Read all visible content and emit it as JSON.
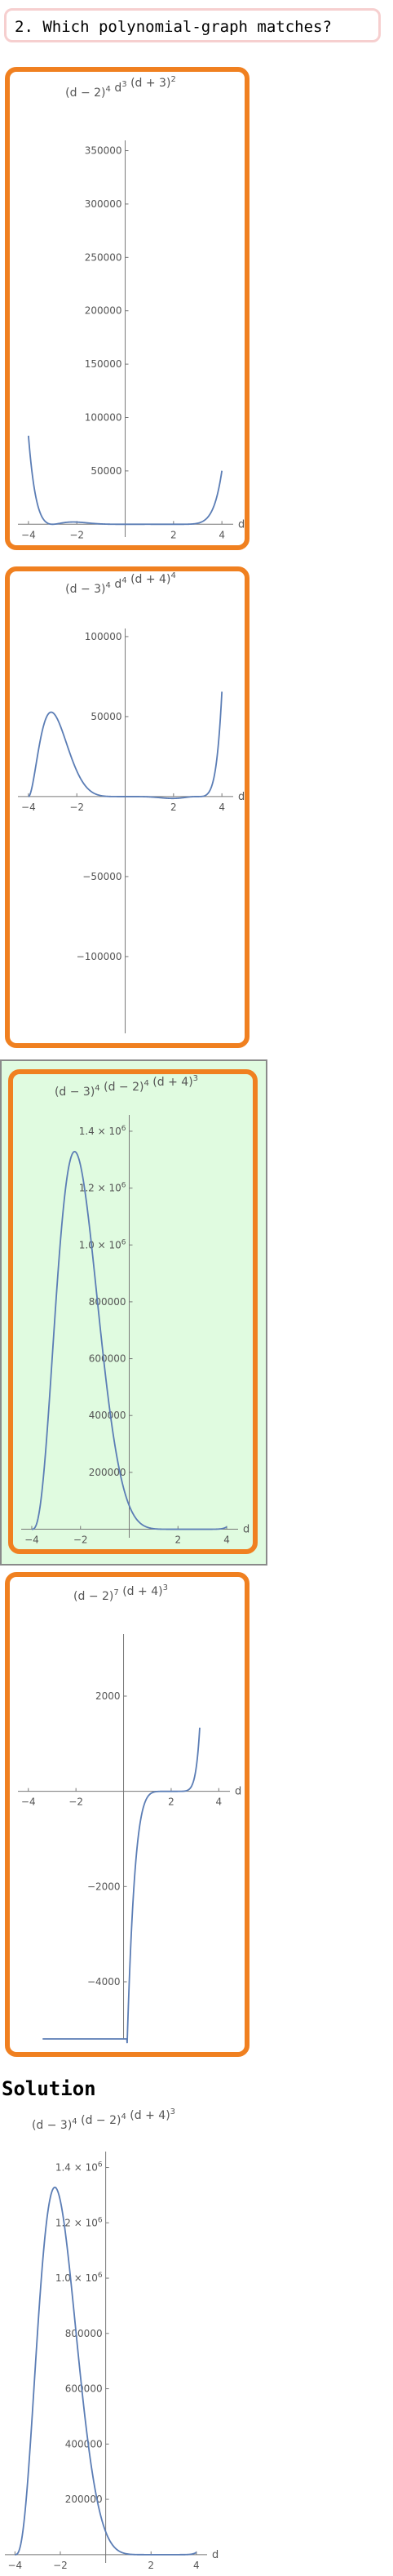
{
  "question": {
    "title": "2. Which polynomial-graph matches?"
  },
  "colors": {
    "card_border": "#f08020",
    "curve": "#5b7db5",
    "selected_bg": "#e0fbe0",
    "axis": "#777777"
  },
  "choices": [
    {
      "selected": false,
      "chart_data": {
        "type": "line",
        "title": "(d − 2)⁴ d³ (d + 3)²",
        "title_parts": [
          [
            "(d − 2)",
            ""
          ],
          [
            "4",
            "sup"
          ],
          [
            " d",
            ""
          ],
          [
            "3",
            "sup"
          ],
          [
            " (d + 3)",
            ""
          ],
          [
            "2",
            "sup"
          ]
        ],
        "xlabel": "d",
        "xlim": [
          -4.3,
          4.4
        ],
        "ylim": [
          -12000,
          355000
        ],
        "x_ticks": [
          -4,
          -2,
          2,
          4
        ],
        "x_tick_labels": [
          "−4",
          "−2",
          "2",
          "4"
        ],
        "y_ticks": [
          50000,
          100000,
          150000,
          200000,
          250000,
          300000,
          350000
        ],
        "y_tick_labels": [
          "50000",
          "100000",
          "150000",
          "200000",
          "250000",
          "300000",
          "350000"
        ],
        "plot_range": [
          -4,
          4
        ],
        "poly": {
          "factors": [
            [
              0,
              3
            ],
            [
              2,
              4
            ],
            [
              -3,
              2
            ]
          ],
          "coef": -1,
          "abs": true
        }
      }
    },
    {
      "selected": false,
      "chart_data": {
        "type": "line",
        "title": "(d − 3)⁴ d⁴ (d + 4)⁴",
        "title_parts": [
          [
            "(d − 3)",
            ""
          ],
          [
            "4",
            "sup"
          ],
          [
            " d",
            ""
          ],
          [
            "4",
            "sup"
          ],
          [
            " (d + 4)",
            ""
          ],
          [
            "4",
            "sup"
          ]
        ],
        "xlabel": "d",
        "xlim": [
          -4.3,
          4.4
        ],
        "ylim": [
          -148000,
          102000
        ],
        "x_ticks": [
          -4,
          -2,
          2,
          4
        ],
        "x_tick_labels": [
          "−4",
          "−2",
          "2",
          "4"
        ],
        "y_ticks": [
          -100000,
          -50000,
          50000,
          100000
        ],
        "y_tick_labels": [
          "−100000",
          "−50000",
          "50000",
          "100000"
        ],
        "plot_range": [
          -4,
          4
        ],
        "poly": {
          "factors": [
            [
              3,
              3
            ],
            [
              0,
              5
            ],
            [
              -4,
              2
            ]
          ],
          "coef": 1,
          "abs": false
        }
      }
    },
    {
      "selected": true,
      "chart_data": {
        "type": "line",
        "title": "(d − 3)⁴ (d − 2)⁴ (d + 4)³",
        "title_parts": [
          [
            "(d − 3)",
            ""
          ],
          [
            "4",
            "sup"
          ],
          [
            " (d − 2)",
            ""
          ],
          [
            "4",
            "sup"
          ],
          [
            " (d + 4)",
            ""
          ],
          [
            "3",
            "sup"
          ]
        ],
        "xlabel": "d",
        "xlim": [
          -4.3,
          4.4
        ],
        "ylim": [
          -30000,
          1440000
        ],
        "x_ticks": [
          -4,
          -2,
          2,
          4
        ],
        "x_tick_labels": [
          "−4",
          "−2",
          "2",
          "4"
        ],
        "y_ticks": [
          200000,
          400000,
          600000,
          800000,
          1000000,
          1200000,
          1400000
        ],
        "y_tick_labels": [
          "200000",
          "400000",
          "600000",
          "800000",
          "1.0 × 10^6",
          "1.2 × 10^6",
          "1.4 × 10^6"
        ],
        "plot_range": [
          -4,
          4
        ],
        "poly": {
          "factors": [
            [
              3,
              4
            ],
            [
              2,
              4
            ],
            [
              -4,
              3
            ]
          ],
          "coef": 1,
          "abs": false
        }
      }
    },
    {
      "selected": false,
      "chart_data": {
        "type": "line",
        "title": "(d − 2)⁷ (d + 4)³",
        "title_parts": [
          [
            "(d − 2)",
            ""
          ],
          [
            "7",
            "sup"
          ],
          [
            " (d + 4)",
            ""
          ],
          [
            "3",
            "sup"
          ]
        ],
        "xlabel": "d",
        "xlim": [
          -4.3,
          4.4
        ],
        "ylim": [
          -5200,
          3200
        ],
        "x_ticks": [
          -4,
          -2,
          2,
          4
        ],
        "x_tick_labels": [
          "−4",
          "−2",
          "2",
          "4"
        ],
        "y_ticks": [
          -4000,
          -2000,
          2000
        ],
        "y_tick_labels": [
          "−4000",
          "−2000",
          "2000"
        ],
        "plot_range": [
          -3.4,
          3.2
        ],
        "poly": {
          "factors": [
            [
              2,
              7
            ],
            [
              -4,
              3
            ]
          ],
          "coef": 1,
          "abs": false
        }
      }
    }
  ],
  "solution": {
    "heading": "Solution",
    "chart_data": {
      "type": "line",
      "title": "(d − 3)⁴ (d − 2)⁴ (d + 4)³",
      "title_parts": [
        [
          "(d − 3)",
          ""
        ],
        [
          "4",
          "sup"
        ],
        [
          " (d − 2)",
          ""
        ],
        [
          "4",
          "sup"
        ],
        [
          " (d + 4)",
          ""
        ],
        [
          "3",
          "sup"
        ]
      ],
      "xlabel": "d",
      "xlim": [
        -4.3,
        4.4
      ],
      "ylim": [
        -30000,
        1440000
      ],
      "x_ticks": [
        -4,
        -2,
        2,
        4
      ],
      "x_tick_labels": [
        "−4",
        "−2",
        "2",
        "4"
      ],
      "y_ticks": [
        200000,
        400000,
        600000,
        800000,
        1000000,
        1200000,
        1400000
      ],
      "y_tick_labels": [
        "200000",
        "400000",
        "600000",
        "800000",
        "1.0 × 10^6",
        "1.2 × 10^6",
        "1.4 × 10^6"
      ],
      "plot_range": [
        -4,
        4
      ],
      "poly": {
        "factors": [
          [
            3,
            4
          ],
          [
            2,
            4
          ],
          [
            -4,
            3
          ]
        ],
        "coef": 1,
        "abs": false
      }
    }
  }
}
